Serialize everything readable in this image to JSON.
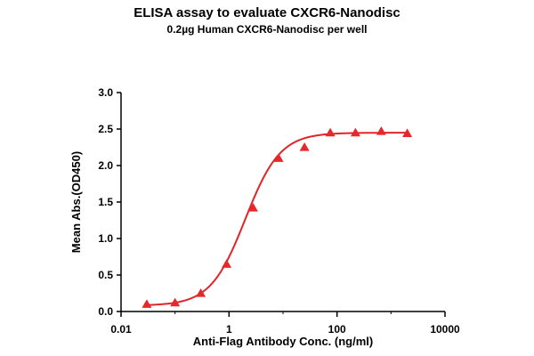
{
  "chart_data": {
    "type": "scatter",
    "title": "ELISA assay to evaluate CXCR6-Nanodisc",
    "subtitle": "0.2µg Human CXCR6-Nanodisc per well",
    "xlabel": "Anti-Flag Antibody Conc. (ng/ml)",
    "ylabel": "Mean Abs.(OD450)",
    "xscale": "log",
    "xlim": [
      0.01,
      10000
    ],
    "ylim": [
      0.0,
      3.0
    ],
    "xticks": [
      0.01,
      1,
      100,
      10000
    ],
    "xtick_labels": [
      "0.01",
      "1",
      "100",
      "10000"
    ],
    "yticks": [
      0.0,
      0.5,
      1.0,
      1.5,
      2.0,
      2.5,
      3.0
    ],
    "ytick_labels": [
      "0.0",
      "0.5",
      "1.0",
      "1.5",
      "2.0",
      "2.5",
      "3.0"
    ],
    "grid": false,
    "legend": "none",
    "series": [
      {
        "marker": "triangle",
        "color": "#e8272a",
        "x": [
          0.03,
          0.1,
          0.3,
          0.9,
          2.8,
          8.3,
          25,
          75,
          220,
          660,
          2000
        ],
        "y": [
          0.1,
          0.12,
          0.25,
          0.65,
          1.42,
          2.1,
          2.25,
          2.45,
          2.45,
          2.47,
          2.44
        ]
      }
    ],
    "fit_curve": {
      "type": "4PL",
      "color": "#e0252a",
      "bottom": 0.08,
      "top": 2.45,
      "ec50": 2.0,
      "hill": 1.35,
      "x_range": [
        0.03,
        2000
      ]
    }
  }
}
